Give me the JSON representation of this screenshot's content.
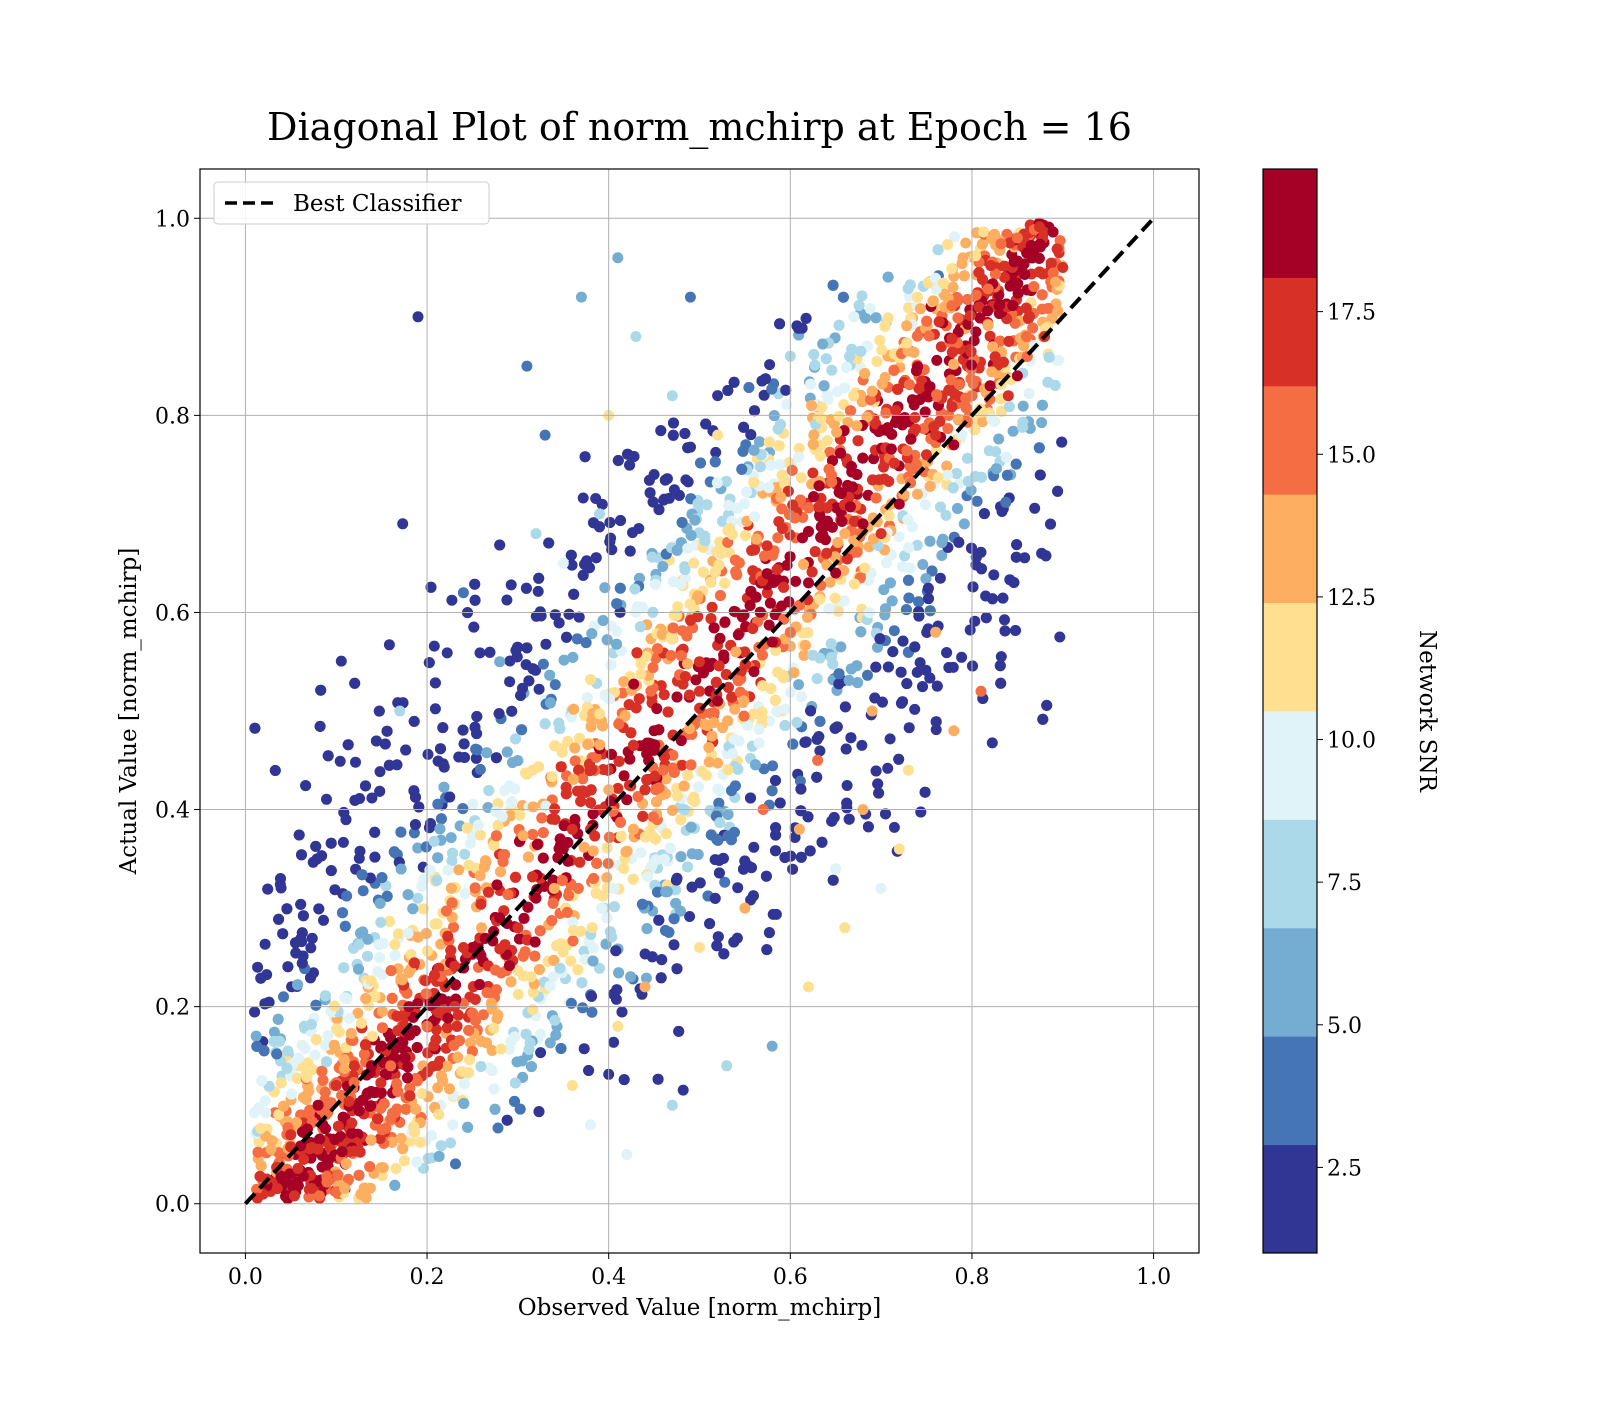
{
  "chart_data": {
    "type": "scatter",
    "title": "Diagonal Plot of norm_mchirp at Epoch = 16",
    "xlabel": "Observed Value [norm_mchirp]",
    "ylabel": "Actual Value [norm_mchirp]",
    "xlim": [
      -0.05,
      1.05
    ],
    "ylim": [
      -0.05,
      1.05
    ],
    "grid": true,
    "xticks": [
      0.0,
      0.2,
      0.4,
      0.6,
      0.8,
      1.0
    ],
    "yticks": [
      0.0,
      0.2,
      0.4,
      0.6,
      0.8,
      1.0
    ],
    "xtick_labels": [
      "0.0",
      "0.2",
      "0.4",
      "0.6",
      "0.8",
      "1.0"
    ],
    "ytick_labels": [
      "0.0",
      "0.2",
      "0.4",
      "0.6",
      "0.8",
      "1.0"
    ],
    "legend": {
      "placement": "top-left",
      "entries": [
        "Best Classifier"
      ]
    },
    "reference_line": {
      "name": "Best Classifier",
      "style": "dashed",
      "color": "#000000",
      "from": [
        0.0,
        0.0
      ],
      "to": [
        1.0,
        1.0
      ]
    },
    "colorbar": {
      "label": "Network SNR",
      "min": 1.0,
      "max": 20.0,
      "tick_values": [
        2.5,
        5.0,
        7.5,
        10.0,
        12.5,
        15.0,
        17.5
      ],
      "tick_labels": [
        "2.5",
        "5.0",
        "7.5",
        "10.0",
        "12.5",
        "15.0",
        "17.5"
      ],
      "bins": 10,
      "colors": [
        "#313695",
        "#4575b4",
        "#74add1",
        "#abd9e9",
        "#e0f3f8",
        "#fee090",
        "#fdae61",
        "#f46d43",
        "#d73027",
        "#a50026"
      ]
    },
    "series": [
      {
        "name": "samples",
        "color_by": "Network SNR",
        "x": [
          0.05,
          0.08,
          0.12,
          0.15,
          0.18,
          0.22,
          0.25,
          0.28,
          0.32,
          0.35,
          0.38,
          0.42,
          0.45,
          0.48,
          0.52,
          0.55,
          0.58,
          0.62,
          0.65,
          0.68,
          0.72,
          0.75,
          0.78,
          0.82,
          0.85,
          0.1,
          0.16,
          0.24,
          0.3,
          0.36,
          0.44,
          0.5,
          0.56,
          0.64,
          0.7,
          0.76,
          0.84,
          0.2,
          0.26,
          0.34,
          0.4,
          0.46,
          0.54,
          0.6,
          0.66,
          0.74,
          0.8,
          0.86,
          0.14,
          0.31,
          0.33,
          0.37,
          0.41,
          0.43,
          0.45,
          0.47,
          0.35,
          0.39,
          0.43,
          0.49,
          0.52,
          0.28,
          0.24,
          0.19,
          0.17,
          0.38,
          0.42,
          0.47,
          0.53,
          0.36,
          0.41,
          0.44,
          0.5,
          0.58,
          0.62,
          0.66,
          0.7,
          0.55,
          0.61,
          0.68,
          0.73,
          0.78,
          0.81,
          0.65,
          0.72,
          0.45,
          0.5,
          0.57,
          0.63,
          0.69,
          0.76,
          0.88,
          0.9,
          0.85,
          0.79,
          0.74,
          0.67,
          0.6,
          0.4,
          0.32
        ],
        "y": [
          0.07,
          0.1,
          0.14,
          0.16,
          0.2,
          0.22,
          0.26,
          0.29,
          0.31,
          0.36,
          0.38,
          0.41,
          0.46,
          0.47,
          0.51,
          0.56,
          0.57,
          0.63,
          0.64,
          0.69,
          0.71,
          0.76,
          0.77,
          0.83,
          0.84,
          0.12,
          0.14,
          0.26,
          0.28,
          0.38,
          0.42,
          0.52,
          0.54,
          0.66,
          0.68,
          0.78,
          0.82,
          0.18,
          0.28,
          0.32,
          0.42,
          0.44,
          0.56,
          0.58,
          0.68,
          0.72,
          0.82,
          0.88,
          0.17,
          0.85,
          0.78,
          0.92,
          0.96,
          0.88,
          0.74,
          0.82,
          0.65,
          0.7,
          0.6,
          0.92,
          0.78,
          0.55,
          0.62,
          0.9,
          0.5,
          0.08,
          0.05,
          0.1,
          0.14,
          0.12,
          0.18,
          0.22,
          0.26,
          0.16,
          0.22,
          0.28,
          0.32,
          0.3,
          0.38,
          0.4,
          0.44,
          0.48,
          0.52,
          0.34,
          0.36,
          0.48,
          0.55,
          0.4,
          0.45,
          0.5,
          0.58,
          0.88,
          0.95,
          0.98,
          0.96,
          0.92,
          0.9,
          0.86,
          0.8,
          0.68
        ],
        "snr": [
          18,
          19,
          18,
          19,
          19,
          18,
          19,
          19,
          19,
          19,
          18,
          19,
          19,
          19,
          19,
          18,
          19,
          19,
          19,
          19,
          19,
          18,
          19,
          19,
          19,
          17,
          16,
          17,
          18,
          17,
          18,
          17,
          19,
          17,
          18,
          17,
          18,
          15,
          14,
          13,
          14,
          15,
          14,
          15,
          14,
          13,
          15,
          16,
          12,
          4,
          3,
          6,
          5,
          7,
          2,
          8,
          9,
          8,
          10,
          4,
          11,
          6,
          3,
          2,
          8,
          10,
          9,
          8,
          7,
          11,
          12,
          13,
          12,
          6,
          12,
          11,
          10,
          13,
          14,
          13,
          12,
          14,
          15,
          9,
          11,
          19,
          18,
          16,
          15,
          14,
          13,
          18,
          17,
          15,
          13,
          12,
          10,
          8,
          11,
          7
        ]
      }
    ]
  }
}
